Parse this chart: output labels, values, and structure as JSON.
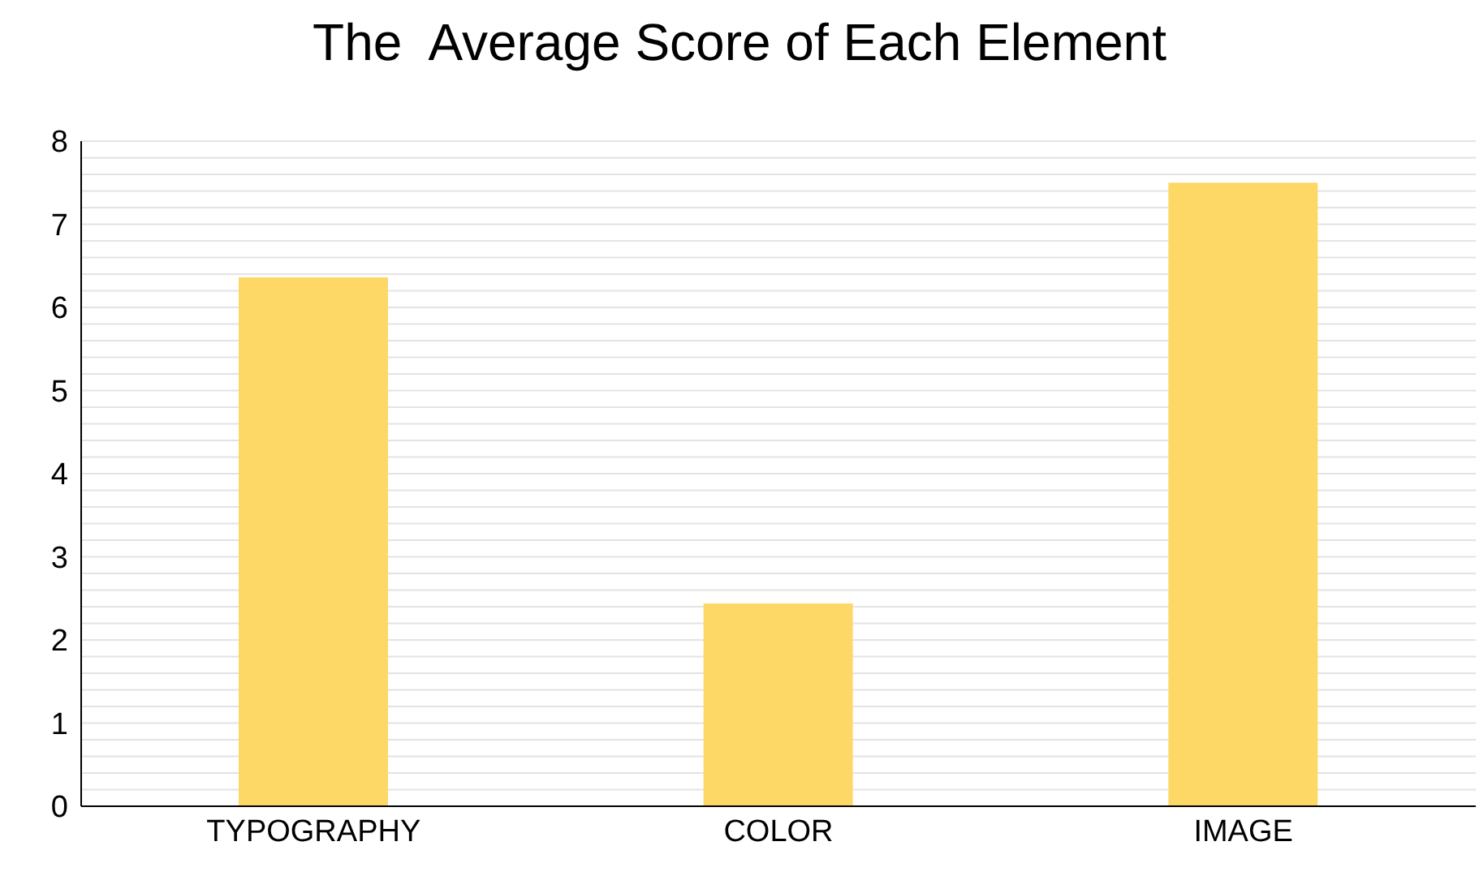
{
  "chart_data": {
    "type": "bar",
    "title": "The  Average Score of Each Element",
    "categories": [
      "TYPOGRAPHY",
      "COLOR",
      "IMAGE"
    ],
    "values": [
      6.36,
      2.44,
      7.5
    ],
    "color": "#fdd867",
    "ylim": [
      0,
      8
    ],
    "yticks": [
      0,
      {
        "value": 0.2,
        "label": null
      },
      {
        "value": 0.4,
        "label": null
      },
      {
        "value": 0.6,
        "label": null
      },
      {
        "value": 0.8,
        "label": null
      },
      1,
      {
        "value": 1.2,
        "label": null
      },
      {
        "value": 1.4,
        "label": null
      },
      {
        "value": 1.6,
        "label": null
      },
      {
        "value": 1.8,
        "label": null
      },
      2,
      {
        "value": 2.2,
        "label": null
      },
      {
        "value": 2.4,
        "label": null
      },
      {
        "value": 2.6,
        "label": null
      },
      {
        "value": 2.8,
        "label": null
      },
      3,
      {
        "value": 3.2,
        "label": null
      },
      {
        "value": 3.4,
        "label": null
      },
      {
        "value": 3.6,
        "label": null
      },
      {
        "value": 3.8,
        "label": null
      },
      4,
      {
        "value": 4.2,
        "label": null
      },
      {
        "value": 4.4,
        "label": null
      },
      {
        "value": 4.6,
        "label": null
      },
      {
        "value": 4.8,
        "label": null
      },
      5,
      {
        "value": 5.2,
        "label": null
      },
      {
        "value": 5.4,
        "label": null
      },
      {
        "value": 5.6,
        "label": null
      },
      {
        "value": 5.8,
        "label": null
      },
      6,
      {
        "value": 6.2,
        "label": null
      },
      {
        "value": 6.4,
        "label": null
      },
      {
        "value": 6.6,
        "label": null
      },
      {
        "value": 6.8,
        "label": null
      },
      7,
      {
        "value": 7.2,
        "label": null
      },
      {
        "value": 7.4,
        "label": null
      },
      {
        "value": 7.6,
        "label": null
      },
      {
        "value": 7.8,
        "label": null
      },
      8
    ],
    "grid": "y"
  }
}
